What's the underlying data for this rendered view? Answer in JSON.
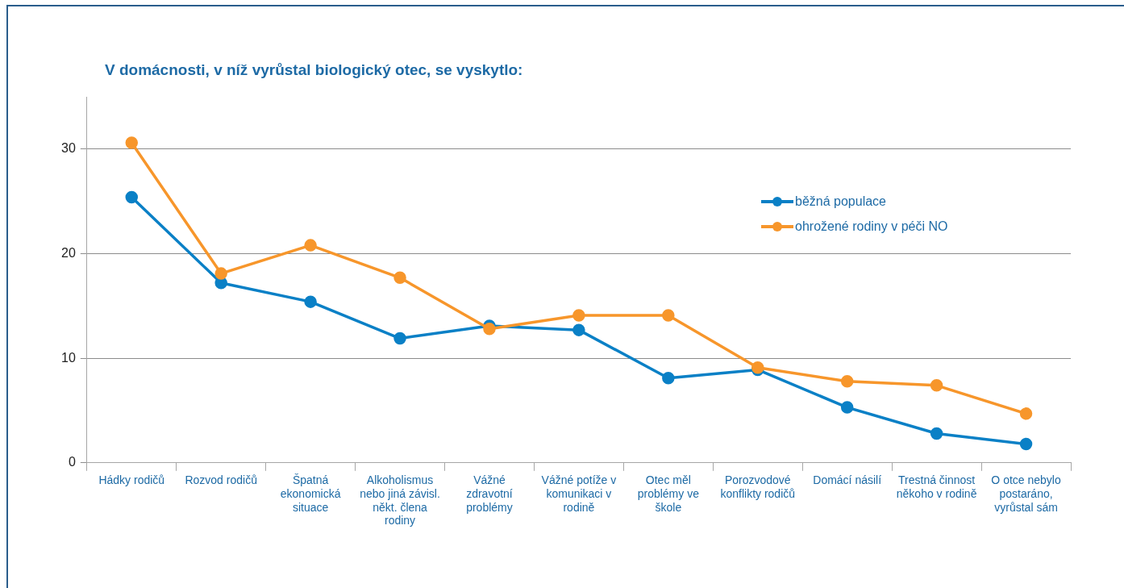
{
  "chart_data": {
    "type": "line",
    "title": "V domácnosti, v níž vyrůstal biologický otec, se vyskytlo:",
    "categories": [
      "Hádky rodičů",
      "Rozvod rodičů",
      "Špatná ekonomická situace",
      "Alkoholismus nebo jiná závisl. někt. člena rodiny",
      "Vážné zdravotní problémy",
      "Vážné potíže v komunikaci v rodině",
      "Otec měl problémy ve škole",
      "Porozvodové konflikty rodičů",
      "Domácí násilí",
      "Trestná činnost někoho v rodině",
      "O otce nebylo postaráno, vyrůstal sám"
    ],
    "series": [
      {
        "name": "běžná populace",
        "color": "#0a80c6",
        "values": [
          25.4,
          17.2,
          15.4,
          11.9,
          13.1,
          12.7,
          8.1,
          8.9,
          5.3,
          2.8,
          1.8
        ]
      },
      {
        "name": "ohrožené rodiny v péči NO",
        "color": "#f7962b",
        "values": [
          30.6,
          18.1,
          20.8,
          17.7,
          12.8,
          14.1,
          14.1,
          9.1,
          7.8,
          7.4,
          4.7
        ]
      }
    ],
    "ylim": [
      0,
      35
    ],
    "yticks": [
      0,
      10,
      20,
      30
    ],
    "grid": "y",
    "legend": "top right",
    "marker": "circle",
    "line_style": "solid"
  }
}
